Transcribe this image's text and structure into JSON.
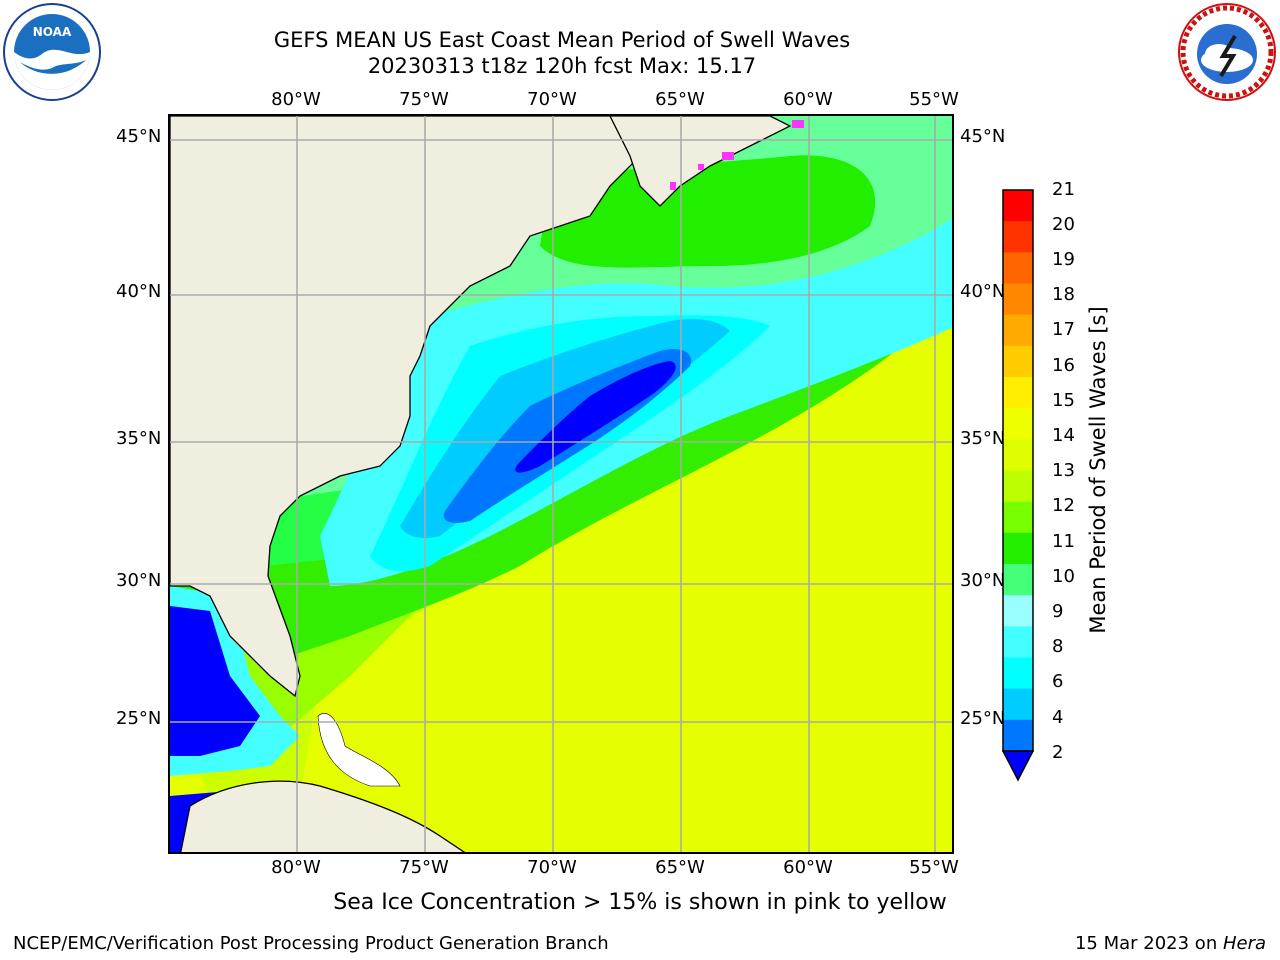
{
  "header": {
    "title_line1": "GEFS MEAN US East Coast Mean Period of Swell Waves",
    "title_line2": "20230313 t18z 120h fcst   Max: 15.17"
  },
  "logos": {
    "left": "noaa-logo",
    "right": "nws-logo",
    "left_text": "NOAA"
  },
  "map": {
    "lon_labels": [
      "80°W",
      "75°W",
      "70°W",
      "65°W",
      "60°W",
      "55°W"
    ],
    "lat_labels": [
      "45°N",
      "40°N",
      "35°N",
      "30°N",
      "25°N"
    ],
    "land_color": "#efeedf",
    "grid_color": "#aaaaaa"
  },
  "colorbar": {
    "label": "Mean Period of Swell Waves [s]",
    "ticks": [
      "21",
      "20",
      "19",
      "18",
      "17",
      "16",
      "15",
      "14",
      "13",
      "12",
      "11",
      "10",
      "9",
      "8",
      "6",
      "4",
      "2"
    ],
    "colors": [
      "#ff0000",
      "#ff3300",
      "#ff6600",
      "#ff8800",
      "#ffaa00",
      "#ffcc00",
      "#ffee00",
      "#eeff00",
      "#ddff00",
      "#bbff00",
      "#77ff00",
      "#22ee00",
      "#44ff77",
      "#99ffff",
      "#44ffff",
      "#00ffff",
      "#00ccff",
      "#0077ff",
      "#0000ff"
    ]
  },
  "notes": {
    "ice": "Sea Ice Concentration > 15% is shown in pink to yellow",
    "footer_left": "NCEP/EMC/Verification Post Processing Product Generation Branch",
    "footer_date": "15 Mar 2023 on ",
    "footer_machine": "Hera"
  }
}
